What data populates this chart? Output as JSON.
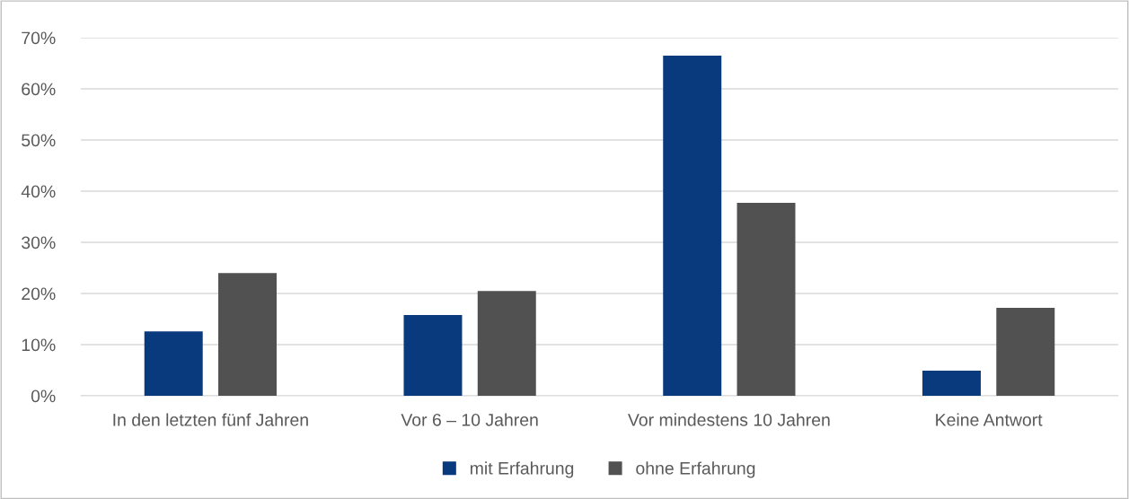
{
  "chart_data": {
    "type": "bar",
    "categories": [
      "In den letzten fünf Jahren",
      "Vor 6 – 10 Jahren",
      "Vor mindestens 10 Jahren",
      "Keine Antwort"
    ],
    "series": [
      {
        "name": "mit Erfahrung",
        "color": "#0a3a7e",
        "values": [
          12.6,
          15.8,
          66.5,
          4.9
        ]
      },
      {
        "name": "ohne Erfahrung",
        "color": "#515151",
        "values": [
          24.0,
          20.5,
          37.7,
          17.2
        ]
      }
    ],
    "ylim": [
      0,
      70
    ],
    "yticks": [
      {
        "value": 0,
        "label": "0%"
      },
      {
        "value": 10,
        "label": "10%"
      },
      {
        "value": 20,
        "label": "20%"
      },
      {
        "value": 30,
        "label": "30%"
      },
      {
        "value": 40,
        "label": "40%"
      },
      {
        "value": 50,
        "label": "50%"
      },
      {
        "value": 60,
        "label": "60%"
      },
      {
        "value": 70,
        "label": "70%"
      }
    ],
    "grid": "y",
    "legend": "bottom"
  }
}
